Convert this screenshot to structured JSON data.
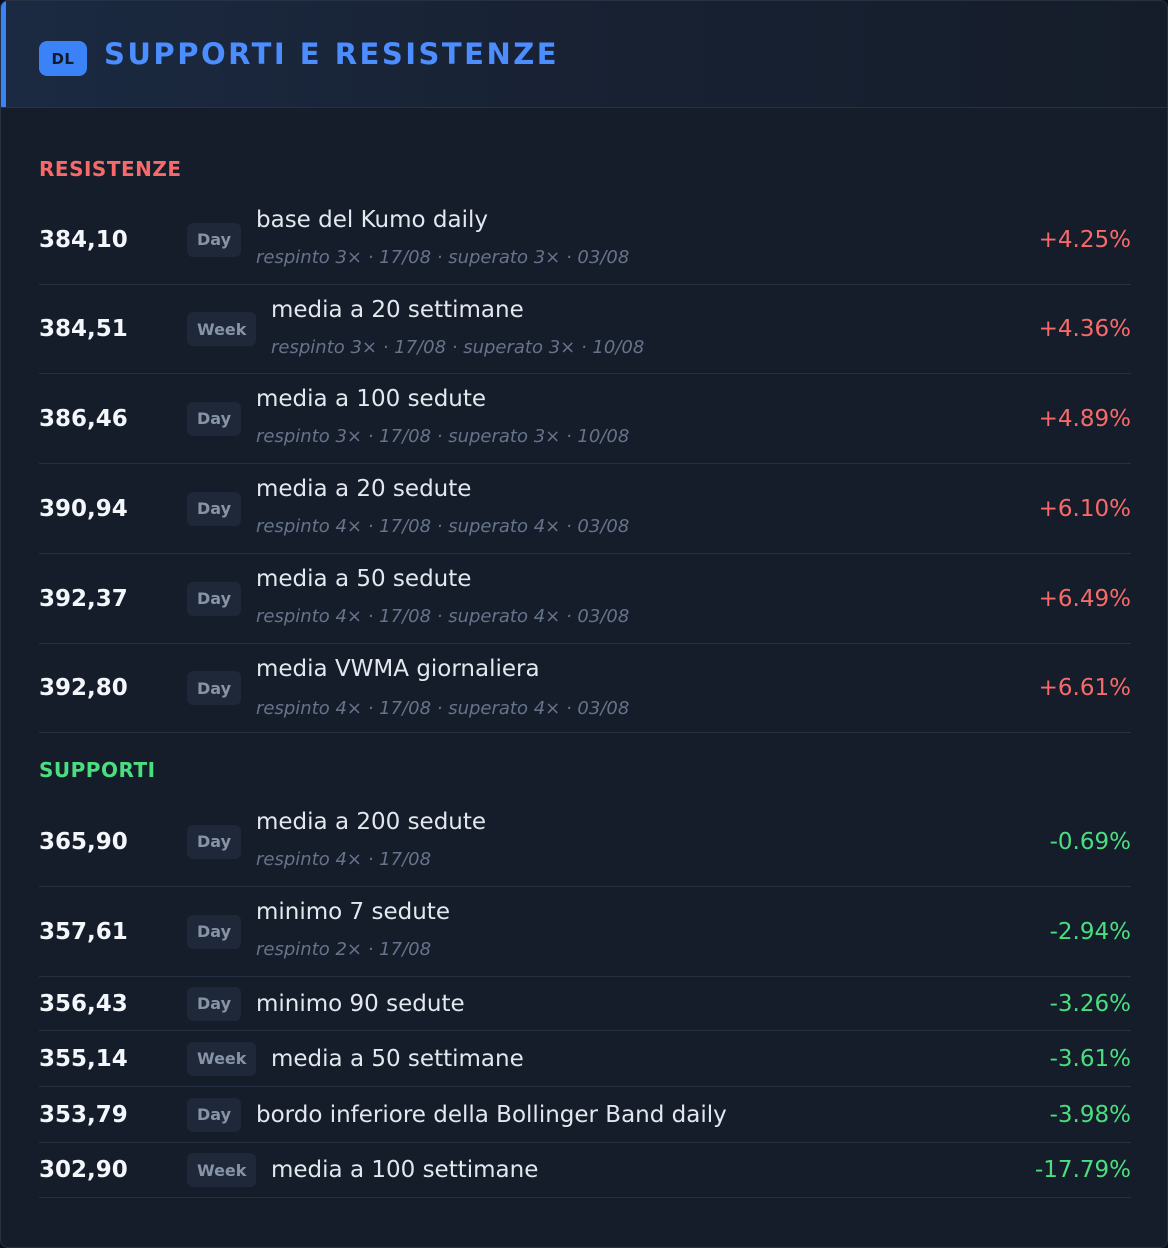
{
  "header": {
    "logo": "DL",
    "title": "SUPPORTI E RESISTENZE",
    "accent_color": "#3b82f6"
  },
  "resistenze": {
    "title": "RESISTENZE",
    "color": "#f86a6a",
    "rows": [
      {
        "value": "384,10",
        "tf": "Day",
        "label": "base del Kumo daily",
        "meta": "respinto 3× · 17/08 · superato 3× · 03/08",
        "pct": "+4.25%"
      },
      {
        "value": "384,51",
        "tf": "Week",
        "label": "media a 20 settimane",
        "meta": "respinto 3× · 17/08 · superato 3× · 10/08",
        "pct": "+4.36%"
      },
      {
        "value": "386,46",
        "tf": "Day",
        "label": "media a 100 sedute",
        "meta": "respinto 3× · 17/08 · superato 3× · 10/08",
        "pct": "+4.89%"
      },
      {
        "value": "390,94",
        "tf": "Day",
        "label": "media a 20 sedute",
        "meta": "respinto 4× · 17/08 · superato 4× · 03/08",
        "pct": "+6.10%"
      },
      {
        "value": "392,37",
        "tf": "Day",
        "label": "media a 50 sedute",
        "meta": "respinto 4× · 17/08 · superato 4× · 03/08",
        "pct": "+6.49%"
      },
      {
        "value": "392,80",
        "tf": "Day",
        "label": "media VWMA giornaliera",
        "meta": "respinto 4× · 17/08 · superato 4× · 03/08",
        "pct": "+6.61%"
      }
    ]
  },
  "supporti": {
    "title": "SUPPORTI",
    "color": "#4ade80",
    "rows": [
      {
        "value": "365,90",
        "tf": "Day",
        "label": "media a 200 sedute",
        "meta": "respinto 4× · 17/08",
        "pct": "-0.69%"
      },
      {
        "value": "357,61",
        "tf": "Day",
        "label": "minimo 7 sedute",
        "meta": "respinto 2× · 17/08",
        "pct": "-2.94%"
      },
      {
        "value": "356,43",
        "tf": "Day",
        "label": "minimo 90 sedute",
        "meta": "",
        "pct": "-3.26%"
      },
      {
        "value": "355,14",
        "tf": "Week",
        "label": "media a 50 settimane",
        "meta": "",
        "pct": "-3.61%"
      },
      {
        "value": "353,79",
        "tf": "Day",
        "label": "bordo inferiore della Bollinger Band daily",
        "meta": "",
        "pct": "-3.98%"
      },
      {
        "value": "302,90",
        "tf": "Week",
        "label": "media a 100 settimane",
        "meta": "",
        "pct": "-17.79%"
      }
    ]
  }
}
